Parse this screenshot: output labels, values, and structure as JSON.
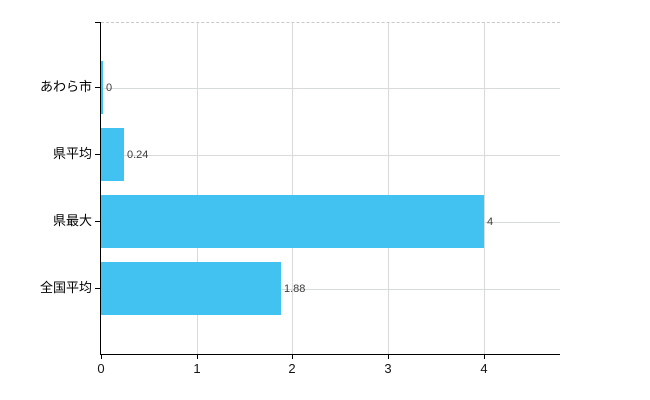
{
  "chart_data": {
    "type": "bar",
    "orientation": "horizontal",
    "title": "",
    "xlabel": "",
    "ylabel": "",
    "categories": [
      "あわら市",
      "県平均",
      "県最大",
      "全国平均"
    ],
    "values": [
      0,
      0.24,
      4,
      1.88
    ],
    "value_labels": [
      "0",
      "0.24",
      "4",
      "1.88"
    ],
    "x_ticks": [
      0,
      1,
      2,
      3,
      4
    ],
    "x_tick_labels": [
      "0",
      "1",
      "2",
      "3",
      "4"
    ],
    "xlim": [
      0,
      4.8
    ],
    "grid": true,
    "legend": false,
    "colors": {
      "bar": "#41C2F0",
      "grid": "#d8dcd8",
      "axis": "#000000",
      "value_label": "#3c3c3c",
      "tick_label": "#141414",
      "category_label": "#000000",
      "background": "#ffffff",
      "plot_top_border": "#c9c9c9"
    }
  }
}
